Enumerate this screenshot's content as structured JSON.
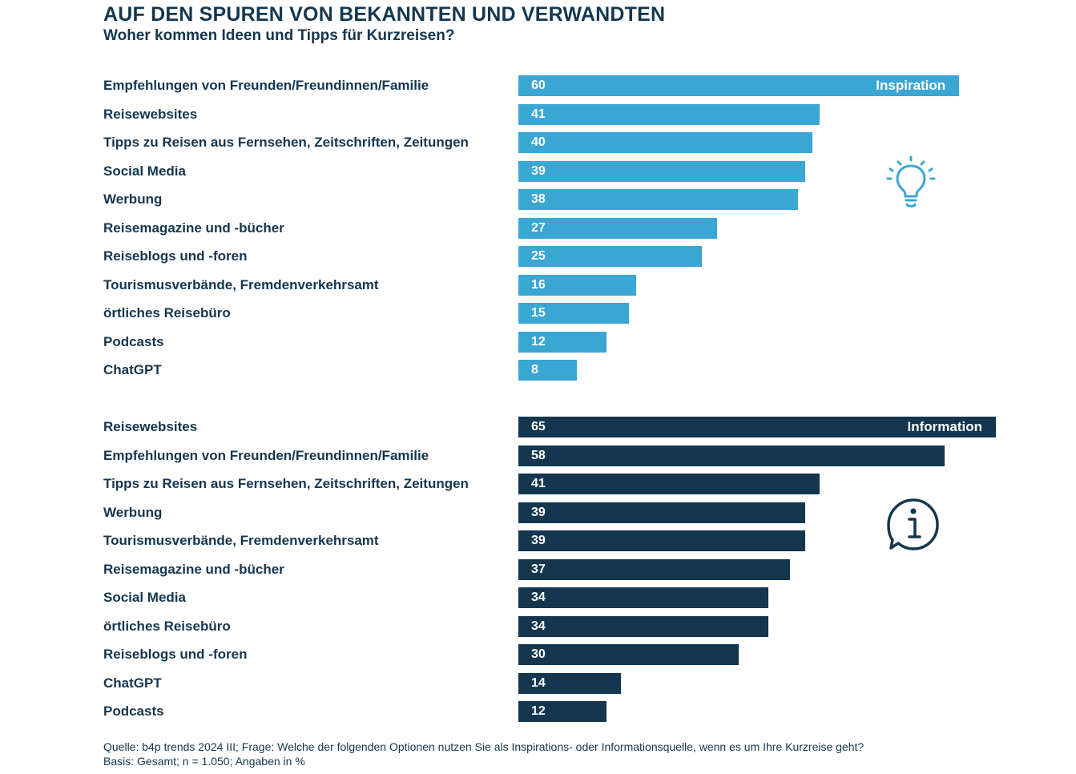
{
  "title": "AUF DEN SPUREN VON BEKANNTEN UND VERWANDTEN",
  "subtitle": "Woher kommen Ideen und Tipps für Kurzreisen?",
  "colors": {
    "inspiration": "#3aa6d3",
    "information": "#14364f",
    "text": "#14364f"
  },
  "icons": {
    "inspiration": "lightbulb-icon",
    "information": "info-speech-bubble-icon"
  },
  "chart_data": [
    {
      "type": "bar",
      "orientation": "horizontal",
      "series_name": "Inspiration",
      "categories": [
        "Empfehlungen von Freunden/Freundinnen/Familie",
        "Reisewebsites",
        "Tipps zu Reisen aus Fernsehen, Zeitschriften, Zeitungen",
        "Social Media",
        "Werbung",
        "Reisemagazine und -bücher",
        "Reiseblogs und -foren",
        "Tourismusverbände, Fremdenverkehrsamt",
        "örtliches Reisebüro",
        "Podcasts",
        "ChatGPT"
      ],
      "values": [
        60,
        41,
        40,
        39,
        38,
        27,
        25,
        16,
        15,
        12,
        8
      ],
      "xlim": [
        0,
        65
      ]
    },
    {
      "type": "bar",
      "orientation": "horizontal",
      "series_name": "Information",
      "categories": [
        "Reisewebsites",
        "Empfehlungen von Freunden/Freundinnen/Familie",
        "Tipps zu Reisen aus Fernsehen, Zeitschriften, Zeitungen",
        "Werbung",
        "Tourismusverbände, Fremdenverkehrsamt",
        "Reisemagazine und -bücher",
        "Social Media",
        "örtliches Reisebüro",
        "Reiseblogs und -foren",
        "ChatGPT",
        "Podcasts"
      ],
      "values": [
        65,
        58,
        41,
        39,
        39,
        37,
        34,
        34,
        30,
        14,
        12
      ],
      "xlim": [
        0,
        65
      ]
    }
  ],
  "footnote": {
    "source": "Quelle: b4p trends 2024 III; Frage: Welche der folgenden Optionen nutzen Sie als Inspirations- oder Informationsquelle, wenn es um Ihre Kurzreise geht?",
    "basis": "Basis: Gesamt; n = 1.050; Angaben in %"
  }
}
